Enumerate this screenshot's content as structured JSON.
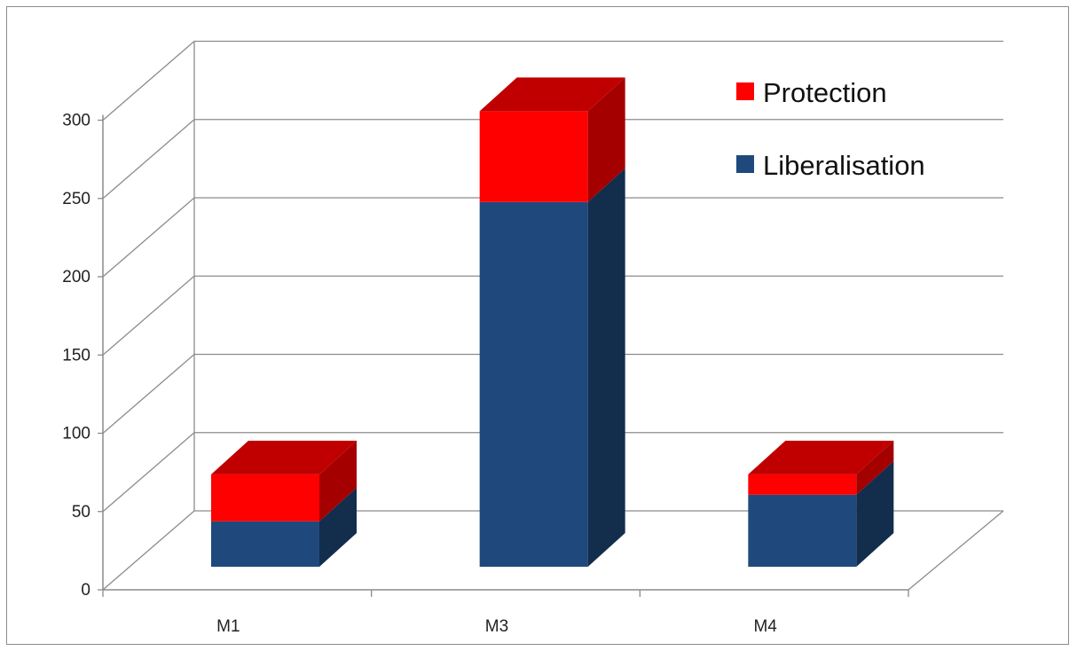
{
  "chart_data": {
    "type": "bar",
    "stacked": true,
    "three_d": true,
    "title": "",
    "xlabel": "",
    "ylabel": "",
    "categories": [
      "M1",
      "M3",
      "M4"
    ],
    "series": [
      {
        "name": "Liberalisation",
        "values": [
          29,
          233,
          46
        ],
        "color": "#1F497D",
        "side_color": "#132D4D"
      },
      {
        "name": "Protection",
        "values": [
          30,
          58,
          13
        ],
        "color": "#FF0000",
        "top_color": "#C00000",
        "side_color": "#A50000"
      }
    ],
    "ylim": [
      0,
      300
    ],
    "yticks": [
      "0",
      "50",
      "100",
      "150",
      "200",
      "250",
      "300"
    ],
    "grid": true,
    "legend": {
      "position": "top-right",
      "order": [
        "Protection",
        "Liberalisation"
      ]
    },
    "colors": {
      "grid": "#8C8C8C",
      "axis": "#8C8C8C",
      "frame": "#8C8C8C"
    }
  }
}
